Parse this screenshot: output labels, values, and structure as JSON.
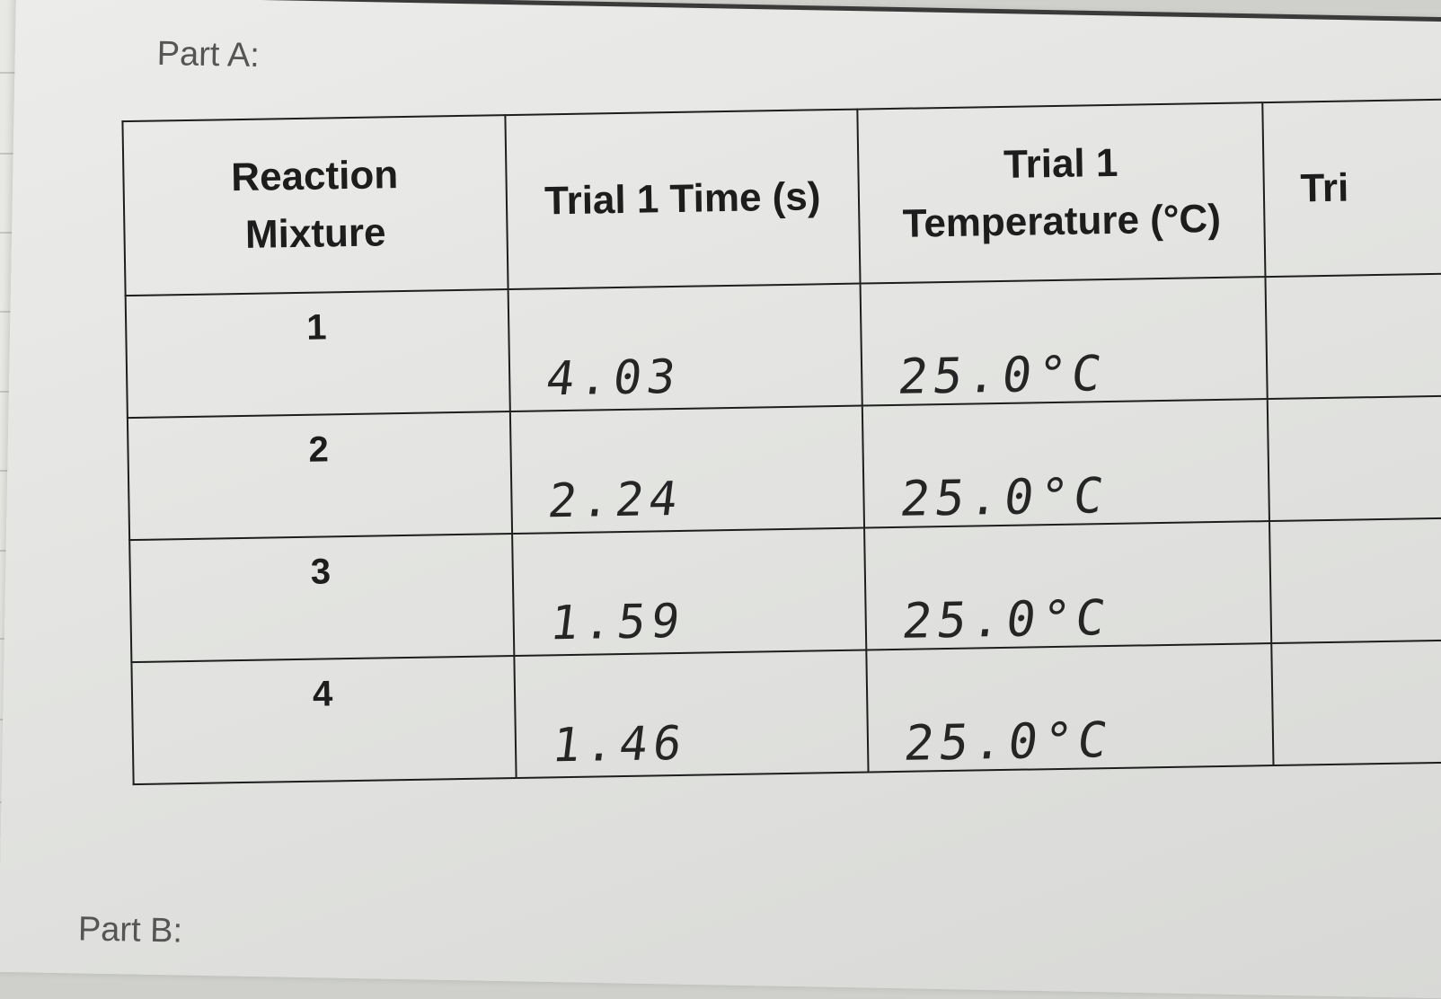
{
  "section_title": "Part A:",
  "next_section_title": "Part B:",
  "table": {
    "headers": {
      "mixture_line1": "Reaction",
      "mixture_line2": "Mixture",
      "time": "Trial 1 Time (s)",
      "temp_line1": "Trial 1",
      "temp_line2": "Temperature (°C)",
      "cut_off": "Tri"
    },
    "rows": [
      {
        "mixture": "1",
        "time": "4.03",
        "temperature": "25.0°C"
      },
      {
        "mixture": "2",
        "time": "2.24",
        "temperature": "25.0°C"
      },
      {
        "mixture": "3",
        "time": "1.59",
        "temperature": "25.0°C"
      },
      {
        "mixture": "4",
        "time": "1.46",
        "temperature": "25.0°C"
      }
    ]
  }
}
